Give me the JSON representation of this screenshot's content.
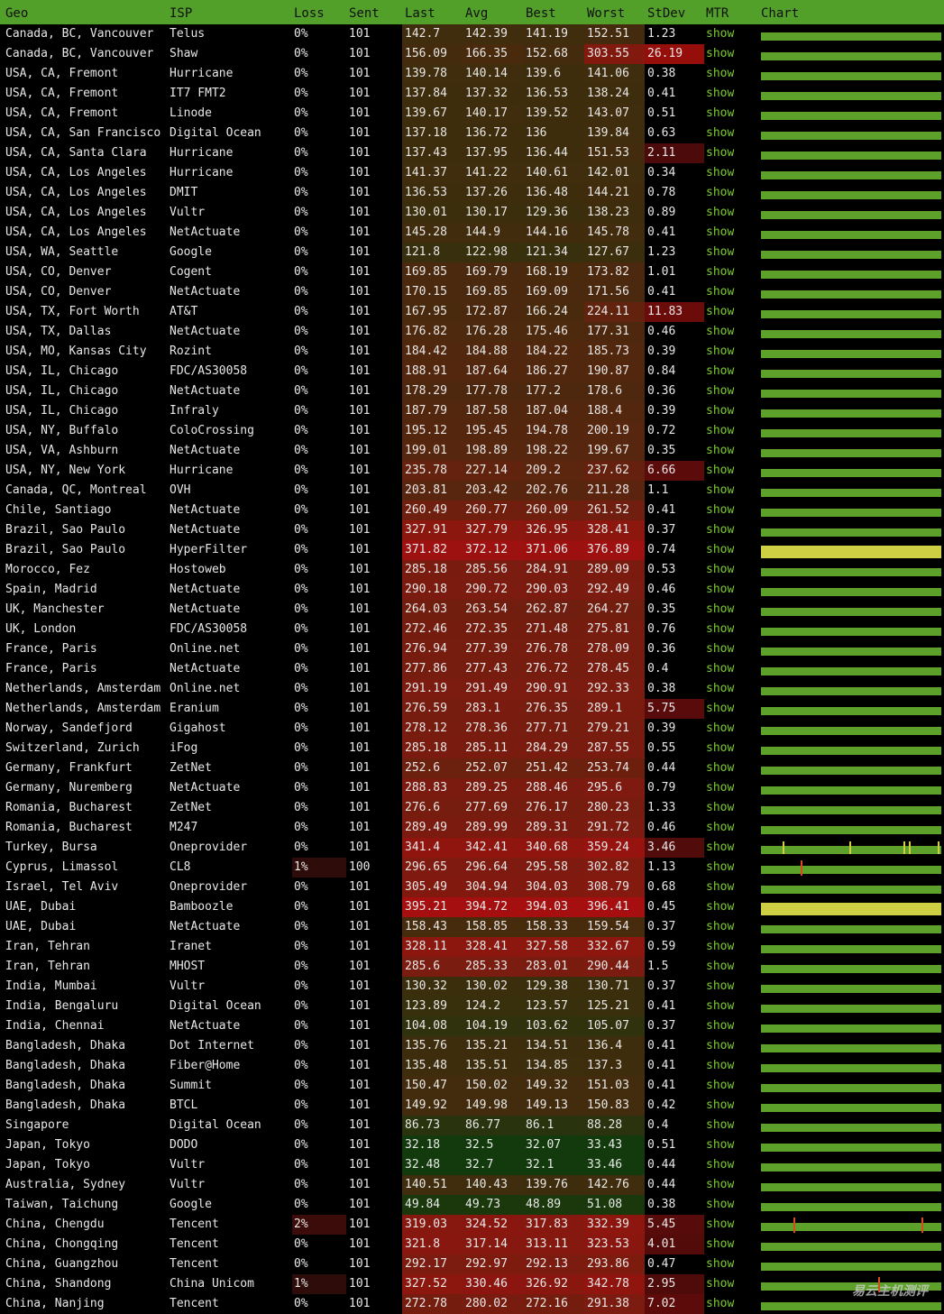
{
  "columns": [
    "Geo",
    "ISP",
    "Loss",
    "Sent",
    "Last",
    "Avg",
    "Best",
    "Worst",
    "StDev",
    "MTR",
    "Chart"
  ],
  "colors": {
    "header_bg": "#52a02a",
    "bar_green": "#5da12a",
    "bar_yellow": "#cfcf44",
    "link_green": "#7ccb30",
    "spike_red": "#d84a1e"
  },
  "rows": [
    {
      "geo": "Canada, BC, Vancouver",
      "isp": "Telus",
      "loss": "0%",
      "sent": "101",
      "last": "142.7",
      "avg": "142.39",
      "best": "141.19",
      "worst": "152.51",
      "stdev": "1.23",
      "mtr": "show"
    },
    {
      "geo": "Canada, BC, Vancouver",
      "isp": "Shaw",
      "loss": "0%",
      "sent": "101",
      "last": "156.09",
      "avg": "166.35",
      "best": "152.68",
      "worst": "303.55",
      "stdev": "26.19",
      "mtr": "show"
    },
    {
      "geo": "USA, CA, Fremont",
      "isp": "Hurricane",
      "loss": "0%",
      "sent": "101",
      "last": "139.78",
      "avg": "140.14",
      "best": "139.6",
      "worst": "141.06",
      "stdev": "0.38",
      "mtr": "show"
    },
    {
      "geo": "USA, CA, Fremont",
      "isp": "IT7 FMT2",
      "loss": "0%",
      "sent": "101",
      "last": "137.84",
      "avg": "137.32",
      "best": "136.53",
      "worst": "138.24",
      "stdev": "0.41",
      "mtr": "show"
    },
    {
      "geo": "USA, CA, Fremont",
      "isp": "Linode",
      "loss": "0%",
      "sent": "101",
      "last": "139.67",
      "avg": "140.17",
      "best": "139.52",
      "worst": "143.07",
      "stdev": "0.51",
      "mtr": "show"
    },
    {
      "geo": "USA, CA, San Francisco",
      "isp": "Digital Ocean",
      "loss": "0%",
      "sent": "101",
      "last": "137.18",
      "avg": "136.72",
      "best": "136",
      "worst": "139.84",
      "stdev": "0.63",
      "mtr": "show"
    },
    {
      "geo": "USA, CA, Santa Clara",
      "isp": "Hurricane",
      "loss": "0%",
      "sent": "101",
      "last": "137.43",
      "avg": "137.95",
      "best": "136.44",
      "worst": "151.53",
      "stdev": "2.11",
      "mtr": "show"
    },
    {
      "geo": "USA, CA, Los Angeles",
      "isp": "Hurricane",
      "loss": "0%",
      "sent": "101",
      "last": "141.37",
      "avg": "141.22",
      "best": "140.61",
      "worst": "142.01",
      "stdev": "0.34",
      "mtr": "show"
    },
    {
      "geo": "USA, CA, Los Angeles",
      "isp": "DMIT",
      "loss": "0%",
      "sent": "101",
      "last": "136.53",
      "avg": "137.26",
      "best": "136.48",
      "worst": "144.21",
      "stdev": "0.78",
      "mtr": "show"
    },
    {
      "geo": "USA, CA, Los Angeles",
      "isp": "Vultr",
      "loss": "0%",
      "sent": "101",
      "last": "130.01",
      "avg": "130.17",
      "best": "129.36",
      "worst": "138.23",
      "stdev": "0.89",
      "mtr": "show"
    },
    {
      "geo": "USA, CA, Los Angeles",
      "isp": "NetActuate",
      "loss": "0%",
      "sent": "101",
      "last": "145.28",
      "avg": "144.9",
      "best": "144.16",
      "worst": "145.78",
      "stdev": "0.41",
      "mtr": "show"
    },
    {
      "geo": "USA, WA, Seattle",
      "isp": "Google",
      "loss": "0%",
      "sent": "101",
      "last": "121.8",
      "avg": "122.98",
      "best": "121.34",
      "worst": "127.67",
      "stdev": "1.23",
      "mtr": "show"
    },
    {
      "geo": "USA, CO, Denver",
      "isp": "Cogent",
      "loss": "0%",
      "sent": "101",
      "last": "169.85",
      "avg": "169.79",
      "best": "168.19",
      "worst": "173.82",
      "stdev": "1.01",
      "mtr": "show"
    },
    {
      "geo": "USA, CO, Denver",
      "isp": "NetActuate",
      "loss": "0%",
      "sent": "101",
      "last": "170.15",
      "avg": "169.85",
      "best": "169.09",
      "worst": "171.56",
      "stdev": "0.41",
      "mtr": "show"
    },
    {
      "geo": "USA, TX, Fort Worth",
      "isp": "AT&T",
      "loss": "0%",
      "sent": "101",
      "last": "167.95",
      "avg": "172.87",
      "best": "166.24",
      "worst": "224.11",
      "stdev": "11.83",
      "mtr": "show"
    },
    {
      "geo": "USA, TX, Dallas",
      "isp": "NetActuate",
      "loss": "0%",
      "sent": "101",
      "last": "176.82",
      "avg": "176.28",
      "best": "175.46",
      "worst": "177.31",
      "stdev": "0.46",
      "mtr": "show"
    },
    {
      "geo": "USA, MO, Kansas City",
      "isp": "Rozint",
      "loss": "0%",
      "sent": "101",
      "last": "184.42",
      "avg": "184.88",
      "best": "184.22",
      "worst": "185.73",
      "stdev": "0.39",
      "mtr": "show"
    },
    {
      "geo": "USA, IL, Chicago",
      "isp": "FDC/AS30058",
      "loss": "0%",
      "sent": "101",
      "last": "188.91",
      "avg": "187.64",
      "best": "186.27",
      "worst": "190.87",
      "stdev": "0.84",
      "mtr": "show"
    },
    {
      "geo": "USA, IL, Chicago",
      "isp": "NetActuate",
      "loss": "0%",
      "sent": "101",
      "last": "178.29",
      "avg": "177.78",
      "best": "177.2",
      "worst": "178.6",
      "stdev": "0.36",
      "mtr": "show"
    },
    {
      "geo": "USA, IL, Chicago",
      "isp": "Infraly",
      "loss": "0%",
      "sent": "101",
      "last": "187.79",
      "avg": "187.58",
      "best": "187.04",
      "worst": "188.4",
      "stdev": "0.39",
      "mtr": "show"
    },
    {
      "geo": "USA, NY, Buffalo",
      "isp": "ColoCrossing",
      "loss": "0%",
      "sent": "101",
      "last": "195.12",
      "avg": "195.45",
      "best": "194.78",
      "worst": "200.19",
      "stdev": "0.72",
      "mtr": "show"
    },
    {
      "geo": "USA, VA, Ashburn",
      "isp": "NetActuate",
      "loss": "0%",
      "sent": "101",
      "last": "199.01",
      "avg": "198.89",
      "best": "198.22",
      "worst": "199.67",
      "stdev": "0.35",
      "mtr": "show"
    },
    {
      "geo": "USA, NY, New York",
      "isp": "Hurricane",
      "loss": "0%",
      "sent": "101",
      "last": "235.78",
      "avg": "227.14",
      "best": "209.2",
      "worst": "237.62",
      "stdev": "6.66",
      "mtr": "show"
    },
    {
      "geo": "Canada, QC, Montreal",
      "isp": "OVH",
      "loss": "0%",
      "sent": "101",
      "last": "203.81",
      "avg": "203.42",
      "best": "202.76",
      "worst": "211.28",
      "stdev": "1.1",
      "mtr": "show"
    },
    {
      "geo": "Chile, Santiago",
      "isp": "NetActuate",
      "loss": "0%",
      "sent": "101",
      "last": "260.49",
      "avg": "260.77",
      "best": "260.09",
      "worst": "261.52",
      "stdev": "0.41",
      "mtr": "show"
    },
    {
      "geo": "Brazil, Sao Paulo",
      "isp": "NetActuate",
      "loss": "0%",
      "sent": "101",
      "last": "327.91",
      "avg": "327.79",
      "best": "326.95",
      "worst": "328.41",
      "stdev": "0.37",
      "mtr": "show"
    },
    {
      "geo": "Brazil, Sao Paulo",
      "isp": "HyperFilter",
      "loss": "0%",
      "sent": "101",
      "last": "371.82",
      "avg": "372.12",
      "best": "371.06",
      "worst": "376.89",
      "stdev": "0.74",
      "mtr": "show"
    },
    {
      "geo": "Morocco, Fez",
      "isp": "Hostoweb",
      "loss": "0%",
      "sent": "101",
      "last": "285.18",
      "avg": "285.56",
      "best": "284.91",
      "worst": "289.09",
      "stdev": "0.53",
      "mtr": "show"
    },
    {
      "geo": "Spain, Madrid",
      "isp": "NetActuate",
      "loss": "0%",
      "sent": "101",
      "last": "290.18",
      "avg": "290.72",
      "best": "290.03",
      "worst": "292.49",
      "stdev": "0.46",
      "mtr": "show"
    },
    {
      "geo": "UK, Manchester",
      "isp": "NetActuate",
      "loss": "0%",
      "sent": "101",
      "last": "264.03",
      "avg": "263.54",
      "best": "262.87",
      "worst": "264.27",
      "stdev": "0.35",
      "mtr": "show"
    },
    {
      "geo": "UK, London",
      "isp": "FDC/AS30058",
      "loss": "0%",
      "sent": "101",
      "last": "272.46",
      "avg": "272.35",
      "best": "271.48",
      "worst": "275.81",
      "stdev": "0.76",
      "mtr": "show"
    },
    {
      "geo": "France, Paris",
      "isp": "Online.net",
      "loss": "0%",
      "sent": "101",
      "last": "276.94",
      "avg": "277.39",
      "best": "276.78",
      "worst": "278.09",
      "stdev": "0.36",
      "mtr": "show"
    },
    {
      "geo": "France, Paris",
      "isp": "NetActuate",
      "loss": "0%",
      "sent": "101",
      "last": "277.86",
      "avg": "277.43",
      "best": "276.72",
      "worst": "278.45",
      "stdev": "0.4",
      "mtr": "show"
    },
    {
      "geo": "Netherlands, Amsterdam",
      "isp": "Online.net",
      "loss": "0%",
      "sent": "101",
      "last": "291.19",
      "avg": "291.49",
      "best": "290.91",
      "worst": "292.33",
      "stdev": "0.38",
      "mtr": "show"
    },
    {
      "geo": "Netherlands, Amsterdam",
      "isp": "Eranium",
      "loss": "0%",
      "sent": "101",
      "last": "276.59",
      "avg": "283.1",
      "best": "276.35",
      "worst": "289.1",
      "stdev": "5.75",
      "mtr": "show"
    },
    {
      "geo": "Norway, Sandefjord",
      "isp": "Gigahost",
      "loss": "0%",
      "sent": "101",
      "last": "278.12",
      "avg": "278.36",
      "best": "277.71",
      "worst": "279.21",
      "stdev": "0.39",
      "mtr": "show"
    },
    {
      "geo": "Switzerland, Zurich",
      "isp": "iFog",
      "loss": "0%",
      "sent": "101",
      "last": "285.18",
      "avg": "285.11",
      "best": "284.29",
      "worst": "287.55",
      "stdev": "0.55",
      "mtr": "show"
    },
    {
      "geo": "Germany, Frankfurt",
      "isp": "ZetNet",
      "loss": "0%",
      "sent": "101",
      "last": "252.6",
      "avg": "252.07",
      "best": "251.42",
      "worst": "253.74",
      "stdev": "0.44",
      "mtr": "show"
    },
    {
      "geo": "Germany, Nuremberg",
      "isp": "NetActuate",
      "loss": "0%",
      "sent": "101",
      "last": "288.83",
      "avg": "289.25",
      "best": "288.46",
      "worst": "295.6",
      "stdev": "0.79",
      "mtr": "show"
    },
    {
      "geo": "Romania, Bucharest",
      "isp": "ZetNet",
      "loss": "0%",
      "sent": "101",
      "last": "276.6",
      "avg": "277.69",
      "best": "276.17",
      "worst": "280.23",
      "stdev": "1.33",
      "mtr": "show"
    },
    {
      "geo": "Romania, Bucharest",
      "isp": "M247",
      "loss": "0%",
      "sent": "101",
      "last": "289.49",
      "avg": "289.99",
      "best": "289.31",
      "worst": "291.72",
      "stdev": "0.46",
      "mtr": "show"
    },
    {
      "geo": "Turkey, Bursa",
      "isp": "Oneprovider",
      "loss": "0%",
      "sent": "101",
      "last": "341.4",
      "avg": "342.41",
      "best": "340.68",
      "worst": "359.24",
      "stdev": "3.46",
      "mtr": "show"
    },
    {
      "geo": "Cyprus, Limassol",
      "isp": "CL8",
      "loss": "1%",
      "sent": "100",
      "last": "296.65",
      "avg": "296.64",
      "best": "295.58",
      "worst": "302.82",
      "stdev": "1.13",
      "mtr": "show"
    },
    {
      "geo": "Israel, Tel Aviv",
      "isp": "Oneprovider",
      "loss": "0%",
      "sent": "101",
      "last": "305.49",
      "avg": "304.94",
      "best": "304.03",
      "worst": "308.79",
      "stdev": "0.68",
      "mtr": "show"
    },
    {
      "geo": "UAE, Dubai",
      "isp": "Bamboozle",
      "loss": "0%",
      "sent": "101",
      "last": "395.21",
      "avg": "394.72",
      "best": "394.03",
      "worst": "396.41",
      "stdev": "0.45",
      "mtr": "show"
    },
    {
      "geo": "UAE, Dubai",
      "isp": "NetActuate",
      "loss": "0%",
      "sent": "101",
      "last": "158.43",
      "avg": "158.85",
      "best": "158.33",
      "worst": "159.54",
      "stdev": "0.37",
      "mtr": "show"
    },
    {
      "geo": "Iran, Tehran",
      "isp": "Iranet",
      "loss": "0%",
      "sent": "101",
      "last": "328.11",
      "avg": "328.41",
      "best": "327.58",
      "worst": "332.67",
      "stdev": "0.59",
      "mtr": "show"
    },
    {
      "geo": "Iran, Tehran",
      "isp": "MHOST",
      "loss": "0%",
      "sent": "101",
      "last": "285.6",
      "avg": "285.33",
      "best": "283.01",
      "worst": "290.44",
      "stdev": "1.5",
      "mtr": "show"
    },
    {
      "geo": "India, Mumbai",
      "isp": "Vultr",
      "loss": "0%",
      "sent": "101",
      "last": "130.32",
      "avg": "130.02",
      "best": "129.38",
      "worst": "130.71",
      "stdev": "0.37",
      "mtr": "show"
    },
    {
      "geo": "India, Bengaluru",
      "isp": "Digital Ocean",
      "loss": "0%",
      "sent": "101",
      "last": "123.89",
      "avg": "124.2",
      "best": "123.57",
      "worst": "125.21",
      "stdev": "0.41",
      "mtr": "show"
    },
    {
      "geo": "India, Chennai",
      "isp": "NetActuate",
      "loss": "0%",
      "sent": "101",
      "last": "104.08",
      "avg": "104.19",
      "best": "103.62",
      "worst": "105.07",
      "stdev": "0.37",
      "mtr": "show"
    },
    {
      "geo": "Bangladesh, Dhaka",
      "isp": "Dot Internet",
      "loss": "0%",
      "sent": "101",
      "last": "135.76",
      "avg": "135.21",
      "best": "134.51",
      "worst": "136.4",
      "stdev": "0.41",
      "mtr": "show"
    },
    {
      "geo": "Bangladesh, Dhaka",
      "isp": "Fiber@Home",
      "loss": "0%",
      "sent": "101",
      "last": "135.48",
      "avg": "135.51",
      "best": "134.85",
      "worst": "137.3",
      "stdev": "0.41",
      "mtr": "show"
    },
    {
      "geo": "Bangladesh, Dhaka",
      "isp": "Summit",
      "loss": "0%",
      "sent": "101",
      "last": "150.47",
      "avg": "150.02",
      "best": "149.32",
      "worst": "151.03",
      "stdev": "0.41",
      "mtr": "show"
    },
    {
      "geo": "Bangladesh, Dhaka",
      "isp": "BTCL",
      "loss": "0%",
      "sent": "101",
      "last": "149.92",
      "avg": "149.98",
      "best": "149.13",
      "worst": "150.83",
      "stdev": "0.42",
      "mtr": "show"
    },
    {
      "geo": "Singapore",
      "isp": "Digital Ocean",
      "loss": "0%",
      "sent": "101",
      "last": "86.73",
      "avg": "86.77",
      "best": "86.1",
      "worst": "88.28",
      "stdev": "0.4",
      "mtr": "show"
    },
    {
      "geo": "Japan, Tokyo",
      "isp": "DODO",
      "loss": "0%",
      "sent": "101",
      "last": "32.18",
      "avg": "32.5",
      "best": "32.07",
      "worst": "33.43",
      "stdev": "0.51",
      "mtr": "show"
    },
    {
      "geo": "Japan, Tokyo",
      "isp": "Vultr",
      "loss": "0%",
      "sent": "101",
      "last": "32.48",
      "avg": "32.7",
      "best": "32.1",
      "worst": "33.46",
      "stdev": "0.44",
      "mtr": "show"
    },
    {
      "geo": "Australia, Sydney",
      "isp": "Vultr",
      "loss": "0%",
      "sent": "101",
      "last": "140.51",
      "avg": "140.43",
      "best": "139.76",
      "worst": "142.76",
      "stdev": "0.44",
      "mtr": "show"
    },
    {
      "geo": "Taiwan, Taichung",
      "isp": "Google",
      "loss": "0%",
      "sent": "101",
      "last": "49.84",
      "avg": "49.73",
      "best": "48.89",
      "worst": "51.08",
      "stdev": "0.38",
      "mtr": "show"
    },
    {
      "geo": "China, Chengdu",
      "isp": "Tencent",
      "loss": "2%",
      "sent": "101",
      "last": "319.03",
      "avg": "324.52",
      "best": "317.83",
      "worst": "332.39",
      "stdev": "5.45",
      "mtr": "show"
    },
    {
      "geo": "China, Chongqing",
      "isp": "Tencent",
      "loss": "0%",
      "sent": "101",
      "last": "321.8",
      "avg": "317.14",
      "best": "313.11",
      "worst": "323.53",
      "stdev": "4.01",
      "mtr": "show"
    },
    {
      "geo": "China, Guangzhou",
      "isp": "Tencent",
      "loss": "0%",
      "sent": "101",
      "last": "292.17",
      "avg": "292.97",
      "best": "292.13",
      "worst": "293.86",
      "stdev": "0.47",
      "mtr": "show"
    },
    {
      "geo": "China, Shandong",
      "isp": "China Unicom",
      "loss": "1%",
      "sent": "101",
      "last": "327.52",
      "avg": "330.46",
      "best": "326.92",
      "worst": "342.78",
      "stdev": "2.95",
      "mtr": "show"
    },
    {
      "geo": "China, Nanjing",
      "isp": "Tencent",
      "loss": "0%",
      "sent": "101",
      "last": "272.78",
      "avg": "280.02",
      "best": "272.16",
      "worst": "291.38",
      "stdev": "7.02",
      "mtr": "show"
    }
  ],
  "charts": {
    "yellow_rows": [
      26,
      44
    ],
    "turkey_row": 41,
    "spikes": [
      {
        "row": 42,
        "pos": 0.22,
        "color": "#d84a1e"
      },
      {
        "row": 60,
        "pos": 0.18,
        "color": "#d84a1e"
      },
      {
        "row": 60,
        "pos": 0.89,
        "color": "#d84a1e"
      },
      {
        "row": 63,
        "pos": 0.65,
        "color": "#d84a1e"
      }
    ]
  },
  "watermark": "易云主机测评"
}
